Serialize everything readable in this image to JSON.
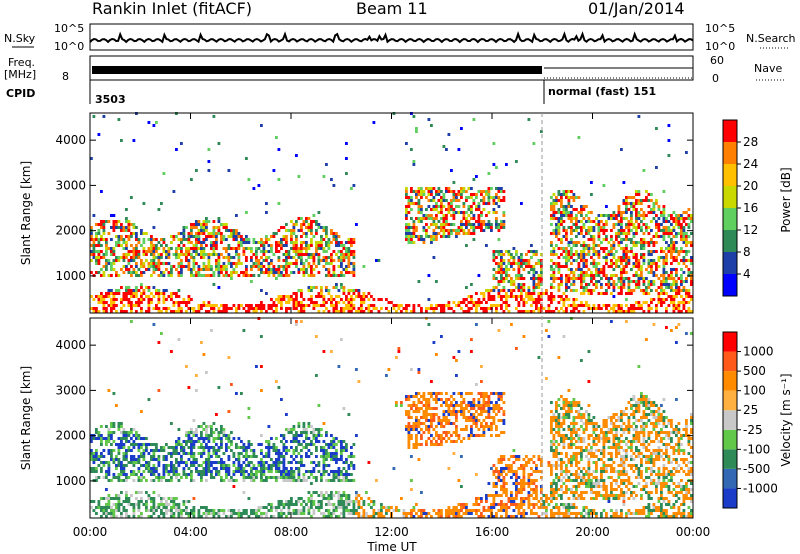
{
  "header": {
    "station": "Rankin Inlet (fitACF)",
    "beam": "Beam 11",
    "date": "01/Jan/2014"
  },
  "strip": {
    "nsky_label": "N.Sky",
    "nsky_ticks": [
      "10^5",
      "10^0"
    ],
    "nsearch_label": "N.Search",
    "nsearch_ticks": [
      "10^5",
      "10^0"
    ],
    "freq_label": "Freq.",
    "freq_unit": "[MHz]",
    "freq_tick": "8",
    "nave_label": "Nave",
    "nave_ticks": [
      "60",
      "0"
    ],
    "cpid_label": "CPID",
    "cpid_1": "3503",
    "cpid_2": "normal (fast) 151"
  },
  "chart_data": [
    {
      "type": "heatmap",
      "name": "power",
      "ylabel": "Slant Range [km]",
      "ylim": [
        180,
        4600
      ],
      "yticks": [
        "4000",
        "3000",
        "2000",
        "1000"
      ],
      "yticks_values": [
        4000,
        3000,
        2000,
        1000
      ],
      "colorbar": {
        "label": "Power [dB]",
        "ticks": [
          "28",
          "24",
          "20",
          "16",
          "12",
          "8",
          "4"
        ],
        "colors": [
          "#0000ff",
          "#1f3fa8",
          "#2e8b57",
          "#5fcf5f",
          "#c8d800",
          "#ffc000",
          "#ff8000",
          "#ff0000"
        ]
      }
    },
    {
      "type": "heatmap",
      "name": "velocity",
      "ylabel": "Slant Range [km]",
      "ylim": [
        180,
        4600
      ],
      "yticks": [
        "4000",
        "3000",
        "2000",
        "1000"
      ],
      "yticks_values": [
        4000,
        3000,
        2000,
        1000
      ],
      "colorbar": {
        "label": "Velocity [m s⁻¹]",
        "ticks": [
          "1000",
          "500",
          "100",
          "25",
          "-25",
          "-100",
          "-500",
          "-1000"
        ],
        "colors": [
          "#1a3cc8",
          "#3268b4",
          "#2e8b57",
          "#62c84a",
          "#c8c8c8",
          "#ffb040",
          "#ff8c00",
          "#ff5a1a",
          "#ff0000"
        ]
      }
    }
  ],
  "xaxis": {
    "label": "Time UT",
    "ticks": [
      "00:00",
      "04:00",
      "08:00",
      "12:00",
      "16:00",
      "20:00",
      "00:00"
    ]
  },
  "colors": {
    "power": [
      "#0000ff",
      "#1f3fa8",
      "#2e8b57",
      "#5fcf5f",
      "#c8d800",
      "#ffc000",
      "#ff8000",
      "#ff0000"
    ],
    "velocity": [
      "#1a3cc8",
      "#3268b4",
      "#2e8b57",
      "#62c84a",
      "#c8c8c8",
      "#ffb040",
      "#ff8c00",
      "#ff5a1a",
      "#ff0000"
    ]
  }
}
